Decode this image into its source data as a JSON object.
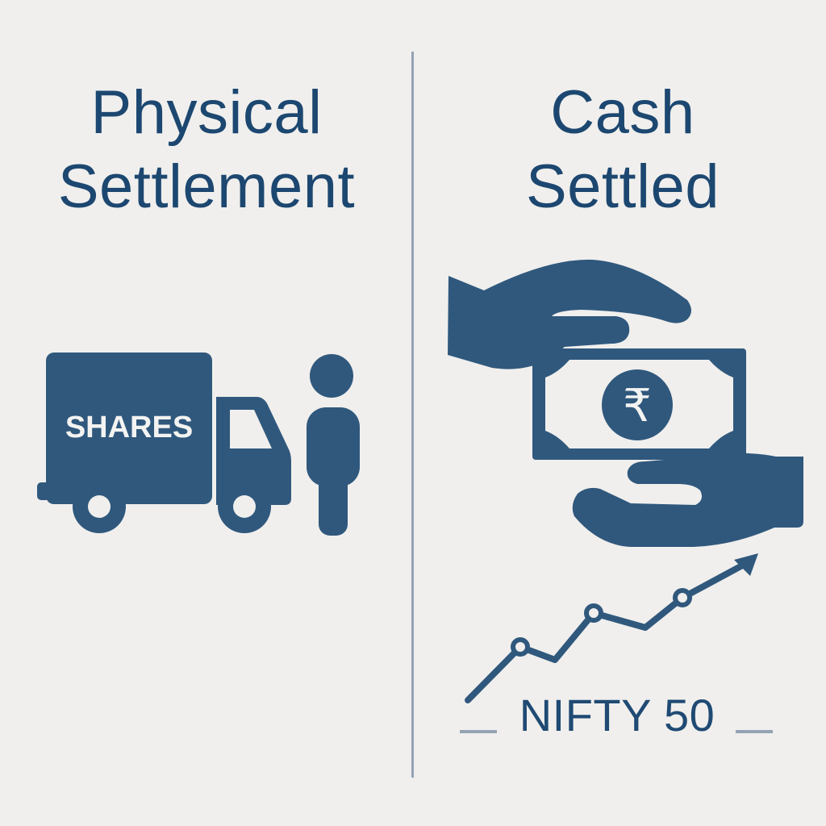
{
  "left_panel": {
    "title_line1": "Physical",
    "title_line2": "Settlement",
    "truck_label": "SHARES"
  },
  "right_panel": {
    "title_line1": "Cash",
    "title_line2": "Settled",
    "currency_symbol": "₹",
    "index_label": "NIFTY 50"
  },
  "colors": {
    "icon": "#30587d",
    "title": "#1c4770",
    "background": "#f0efed",
    "divider": "#93a3b3"
  }
}
